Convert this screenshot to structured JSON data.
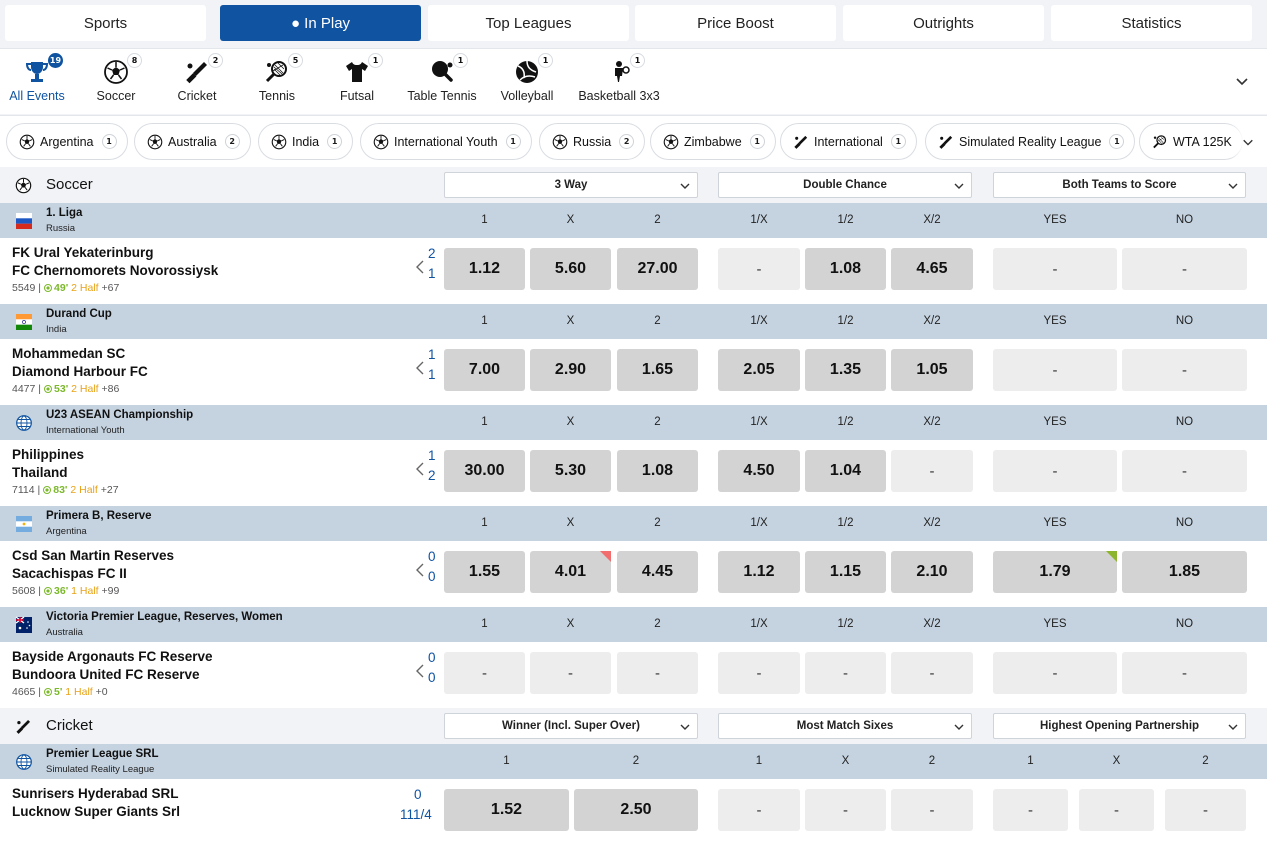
{
  "nav_tabs": [
    {
      "label": "Sports",
      "active": false
    },
    {
      "label": "● In Play",
      "active": true
    },
    {
      "label": "Top Leagues",
      "active": false
    },
    {
      "label": "Price Boost",
      "active": false
    },
    {
      "label": "Outrights",
      "active": false
    },
    {
      "label": "Statistics",
      "active": false
    }
  ],
  "sports": [
    {
      "label": "All Events",
      "count": "19",
      "icon": "trophy-icon",
      "active": true
    },
    {
      "label": "Soccer",
      "count": "8",
      "icon": "soccer-ball-icon"
    },
    {
      "label": "Cricket",
      "count": "2",
      "icon": "cricket-bat-icon"
    },
    {
      "label": "Tennis",
      "count": "5",
      "icon": "tennis-racket-icon"
    },
    {
      "label": "Futsal",
      "count": "1",
      "icon": "jersey-icon"
    },
    {
      "label": "Table Tennis",
      "count": "1",
      "icon": "table-tennis-paddle-icon"
    },
    {
      "label": "Volleyball",
      "count": "1",
      "icon": "volleyball-icon"
    },
    {
      "label": "Basketball 3x3",
      "count": "1",
      "icon": "basketball-player-icon"
    }
  ],
  "region_chips": [
    {
      "label": "Argentina",
      "count": "1",
      "icon": "soccer-ball-icon"
    },
    {
      "label": "Australia",
      "count": "2",
      "icon": "soccer-ball-icon"
    },
    {
      "label": "India",
      "count": "1",
      "icon": "soccer-ball-icon"
    },
    {
      "label": "International Youth",
      "count": "1",
      "icon": "soccer-ball-icon"
    },
    {
      "label": "Russia",
      "count": "2",
      "icon": "soccer-ball-icon"
    },
    {
      "label": "Zimbabwe",
      "count": "1",
      "icon": "soccer-ball-icon"
    },
    {
      "label": "International",
      "count": "1",
      "icon": "cricket-bat-icon"
    },
    {
      "label": "Simulated Reality League",
      "count": "1",
      "icon": "cricket-bat-icon"
    },
    {
      "label": "WTA 125K",
      "count": "",
      "icon": "tennis-racket-icon"
    }
  ],
  "soccer": {
    "title": "Soccer",
    "markets": [
      "3 Way",
      "Double Chance",
      "Both Teams to Score"
    ],
    "columns": [
      "1",
      "X",
      "2",
      "1/X",
      "1/2",
      "X/2",
      "YES",
      "NO"
    ],
    "leagues": [
      {
        "name": "1. Liga",
        "country": "Russia",
        "flag": "russia",
        "match": {
          "home": "FK Ural Yekaterinburg",
          "away": "FC Chernomorets Novorossiysk",
          "id": "5549",
          "minute": "49'",
          "period": "2 Half",
          "more": "+67",
          "score_home": "2",
          "score_away": "1",
          "odds": [
            "1.12",
            "5.60",
            "27.00",
            "-",
            "1.08",
            "4.65",
            "-",
            "-"
          ]
        }
      },
      {
        "name": "Durand Cup",
        "country": "India",
        "flag": "india",
        "match": {
          "home": "Mohammedan SC",
          "away": "Diamond Harbour FC",
          "id": "4477",
          "minute": "53'",
          "period": "2 Half",
          "more": "+86",
          "score_home": "1",
          "score_away": "1",
          "odds": [
            "7.00",
            "2.90",
            "1.65",
            "2.05",
            "1.35",
            "1.05",
            "-",
            "-"
          ]
        }
      },
      {
        "name": "U23 ASEAN Championship",
        "country": "International Youth",
        "flag": "globe",
        "match": {
          "home": "Philippines",
          "away": "Thailand",
          "id": "7114",
          "minute": "83'",
          "period": "2 Half",
          "more": "+27",
          "score_home": "1",
          "score_away": "2",
          "odds": [
            "30.00",
            "5.30",
            "1.08",
            "4.50",
            "1.04",
            "-",
            "-",
            "-"
          ]
        }
      },
      {
        "name": "Primera B, Reserve",
        "country": "Argentina",
        "flag": "argentina",
        "match": {
          "home": "Csd San Martin Reserves",
          "away": "Sacachispas FC II",
          "id": "5608",
          "minute": "36'",
          "period": "1 Half",
          "more": "+99",
          "score_home": "0",
          "score_away": "0",
          "odds": [
            "1.55",
            "4.01",
            "4.45",
            "1.12",
            "1.15",
            "2.10",
            "1.79",
            "1.85"
          ],
          "down": [
            1
          ],
          "up": [
            6
          ]
        }
      },
      {
        "name": "Victoria Premier League, Reserves, Women",
        "country": "Australia",
        "flag": "australia",
        "match": {
          "home": "Bayside Argonauts FC Reserve",
          "away": "Bundoora United FC Reserve",
          "id": "4665",
          "minute": "5'",
          "period": "1 Half",
          "more": "+0",
          "score_home": "0",
          "score_away": "0",
          "odds": [
            "-",
            "-",
            "-",
            "-",
            "-",
            "-",
            "-",
            "-"
          ]
        }
      }
    ]
  },
  "cricket": {
    "title": "Cricket",
    "markets": [
      "Winner (Incl. Super Over)",
      "Most Match Sixes",
      "Highest Opening Partnership"
    ],
    "columns": [
      "1",
      "2",
      "1",
      "X",
      "2",
      "1",
      "X",
      "2"
    ],
    "league": {
      "name": "Premier League SRL",
      "country": "Simulated Reality League",
      "flag": "globe"
    },
    "match": {
      "home": "Sunrisers Hyderabad SRL",
      "away": "Lucknow Super Giants Srl",
      "score_home": "0",
      "score_away": "111/4",
      "odds": [
        "1.52",
        "2.50",
        "-",
        "-",
        "-",
        "-",
        "-",
        "-"
      ]
    }
  }
}
